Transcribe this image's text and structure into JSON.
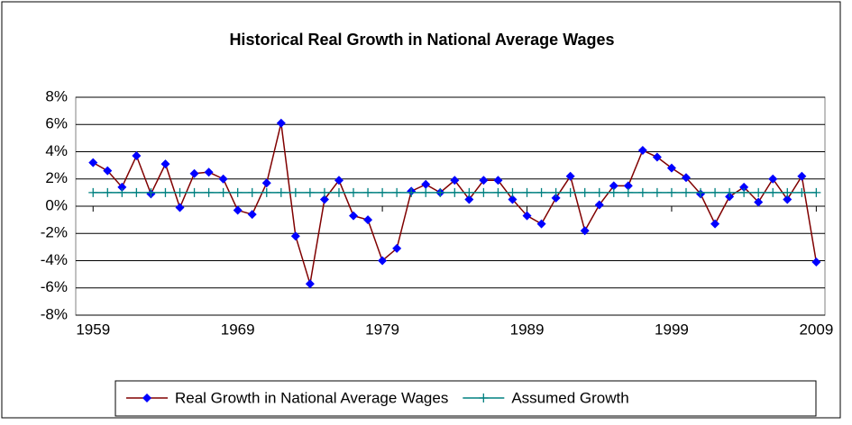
{
  "chart_data": {
    "type": "line",
    "title": "Historical Real Growth in National Average Wages",
    "x": [
      1959,
      1960,
      1961,
      1962,
      1963,
      1964,
      1965,
      1966,
      1967,
      1968,
      1969,
      1970,
      1971,
      1972,
      1973,
      1974,
      1975,
      1976,
      1977,
      1978,
      1979,
      1980,
      1981,
      1982,
      1983,
      1984,
      1985,
      1986,
      1987,
      1988,
      1989,
      1990,
      1991,
      1992,
      1993,
      1994,
      1995,
      1996,
      1997,
      1998,
      1999,
      2000,
      2001,
      2002,
      2003,
      2004,
      2005,
      2006,
      2007,
      2008,
      2009
    ],
    "series": [
      {
        "name": "Real Growth in National Average Wages",
        "color": "#800000",
        "marker_color": "#0000ff",
        "marker": "diamond",
        "values": [
          3.2,
          2.6,
          1.4,
          3.7,
          0.9,
          3.1,
          -0.1,
          2.4,
          2.5,
          2.0,
          -0.3,
          -0.6,
          1.7,
          6.1,
          -2.2,
          -5.7,
          0.5,
          1.9,
          -0.7,
          -1.0,
          -4.0,
          -3.1,
          1.1,
          1.6,
          1.0,
          1.9,
          0.5,
          1.9,
          1.9,
          0.5,
          -0.7,
          -1.3,
          0.6,
          2.2,
          -1.8,
          0.1,
          1.5,
          1.5,
          4.1,
          3.6,
          2.8,
          2.1,
          0.9,
          -1.3,
          0.7,
          1.4,
          0.3,
          2.0,
          0.5,
          2.2,
          -4.1
        ]
      },
      {
        "name": "Assumed Growth",
        "color": "#008080",
        "marker_color": "#008080",
        "marker": "plus",
        "values": [
          1,
          1,
          1,
          1,
          1,
          1,
          1,
          1,
          1,
          1,
          1,
          1,
          1,
          1,
          1,
          1,
          1,
          1,
          1,
          1,
          1,
          1,
          1,
          1,
          1,
          1,
          1,
          1,
          1,
          1,
          1,
          1,
          1,
          1,
          1,
          1,
          1,
          1,
          1,
          1,
          1,
          1,
          1,
          1,
          1,
          1,
          1,
          1,
          1,
          1,
          1
        ]
      }
    ],
    "xlim": [
      1957.8,
      2009.6
    ],
    "xticks": [
      1959,
      1969,
      1979,
      1989,
      1999,
      2009
    ],
    "ylim": [
      -8,
      8
    ],
    "yticks": [
      {
        "value": -8,
        "label": "-8%"
      },
      {
        "value": -6,
        "label": "-6%"
      },
      {
        "value": -4,
        "label": "-4%"
      },
      {
        "value": -2,
        "label": "-2%"
      },
      {
        "value": 0,
        "label": "0%"
      },
      {
        "value": 2,
        "label": "2%"
      },
      {
        "value": 4,
        "label": "4%"
      },
      {
        "value": 6,
        "label": "6%"
      },
      {
        "value": 8,
        "label": "8%"
      }
    ],
    "grid": true,
    "legend": "bottom"
  }
}
